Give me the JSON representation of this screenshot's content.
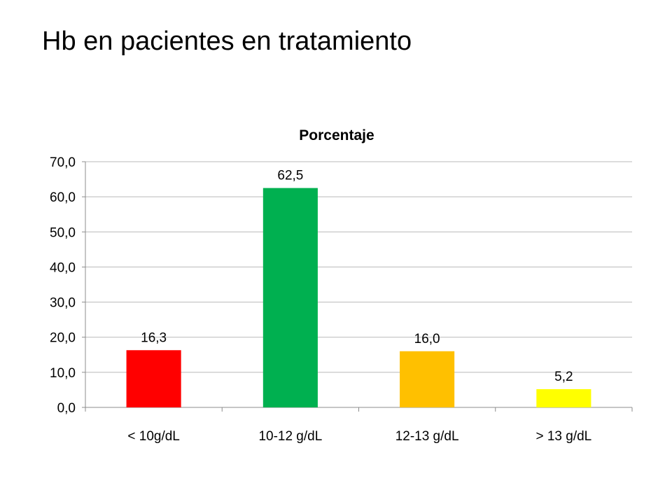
{
  "slide": {
    "title": "Hb en pacientes en tratamiento"
  },
  "chart_data": {
    "type": "bar",
    "title": "Porcentaje",
    "categories": [
      "< 10g/dL",
      "10-12 g/dL",
      "12-13 g/dL",
      "> 13 g/dL"
    ],
    "values": [
      16.3,
      62.5,
      16.0,
      5.2
    ],
    "value_labels": [
      "16,3",
      "62,5",
      "16,0",
      "5,2"
    ],
    "bar_colors": [
      "#ff0000",
      "#00b050",
      "#ffc000",
      "#ffff00"
    ],
    "ylim": [
      0,
      70
    ],
    "yticks": [
      0,
      10,
      20,
      30,
      40,
      50,
      60,
      70
    ],
    "ytick_labels": [
      "0,0",
      "10,0",
      "20,0",
      "30,0",
      "40,0",
      "50,0",
      "60,0",
      "70,0"
    ],
    "grid": true,
    "legend": "none",
    "xlabel": "",
    "ylabel": ""
  }
}
